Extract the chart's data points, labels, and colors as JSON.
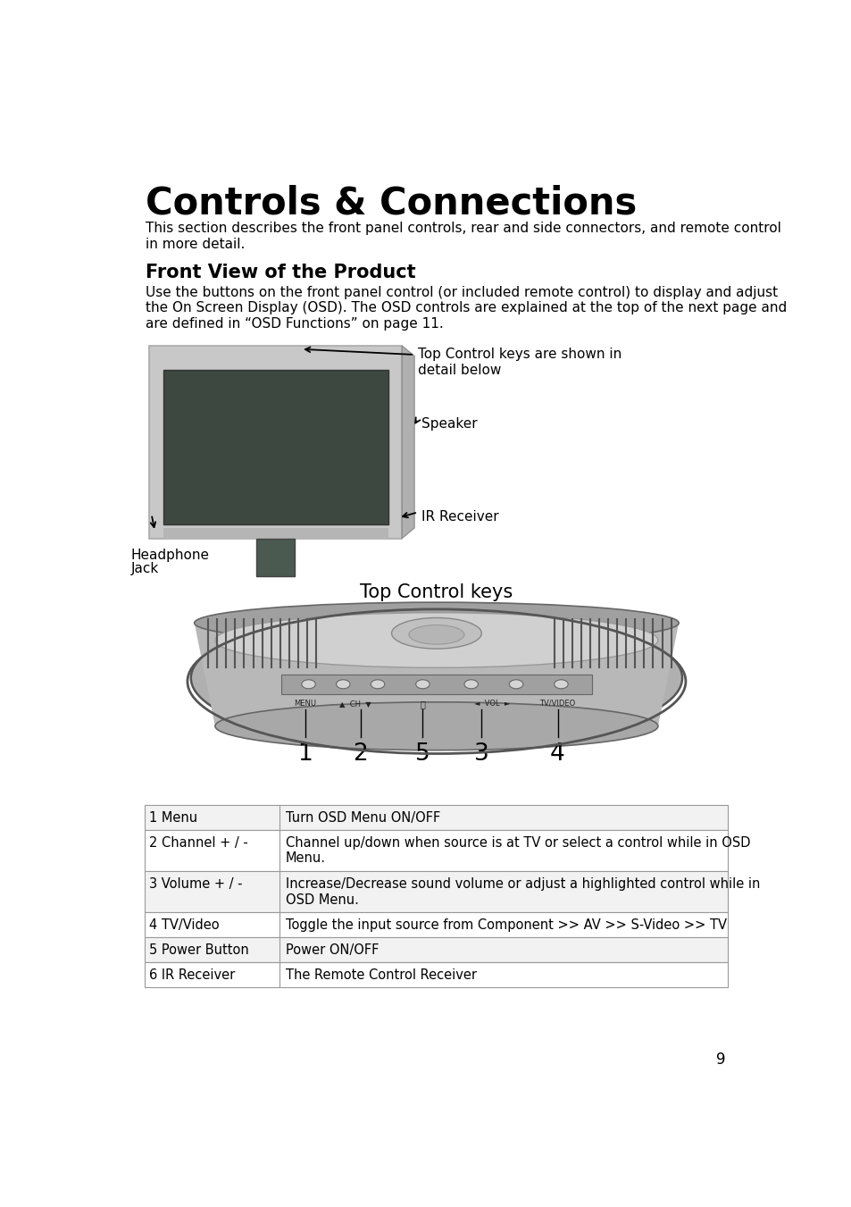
{
  "title": "Controls & Connections",
  "subtitle": "This section describes the front panel controls, rear and side connectors, and remote control\nin more detail.",
  "section_title": "Front View of the Product",
  "section_body": "Use the buttons on the front panel control (or included remote control) to display and adjust\nthe On Screen Display (OSD). The OSD controls are explained at the top of the next page and\nare defined in “OSD Functions” on page 11.",
  "label_top_control": "Top Control keys are shown in\ndetail below",
  "label_speaker": "Speaker",
  "label_ir": "IR Receiver",
  "label_headphone": "Headphone",
  "label_headphone2": "Jack",
  "top_control_title": "Top Control keys",
  "table_rows": [
    [
      "1 Menu",
      "Turn OSD Menu ON/OFF"
    ],
    [
      "2 Channel + / -",
      "Channel up/down when source is at TV or select a control while in OSD\nMenu."
    ],
    [
      "3 Volume + / -",
      "Increase/Decrease sound volume or adjust a highlighted control while in\nOSD Menu."
    ],
    [
      "4 TV/Video",
      "Toggle the input source from Component >> AV >> S-Video >> TV"
    ],
    [
      "5 Power Button",
      "Power ON/OFF"
    ],
    [
      "6 IR Receiver",
      "The Remote Control Receiver"
    ]
  ],
  "page_number": "9",
  "bg_color": "#ffffff",
  "text_color": "#000000",
  "table_border_color": "#999999",
  "tv_outer_color": "#c8c8c8",
  "tv_screen_color": "#3d4840",
  "tv_stand_color": "#4a5a50",
  "ctrl_outer_color": "#aaaaaa",
  "ctrl_inner_color": "#cccccc",
  "ctrl_dark_color": "#777777",
  "ctrl_strip_color": "#999999"
}
